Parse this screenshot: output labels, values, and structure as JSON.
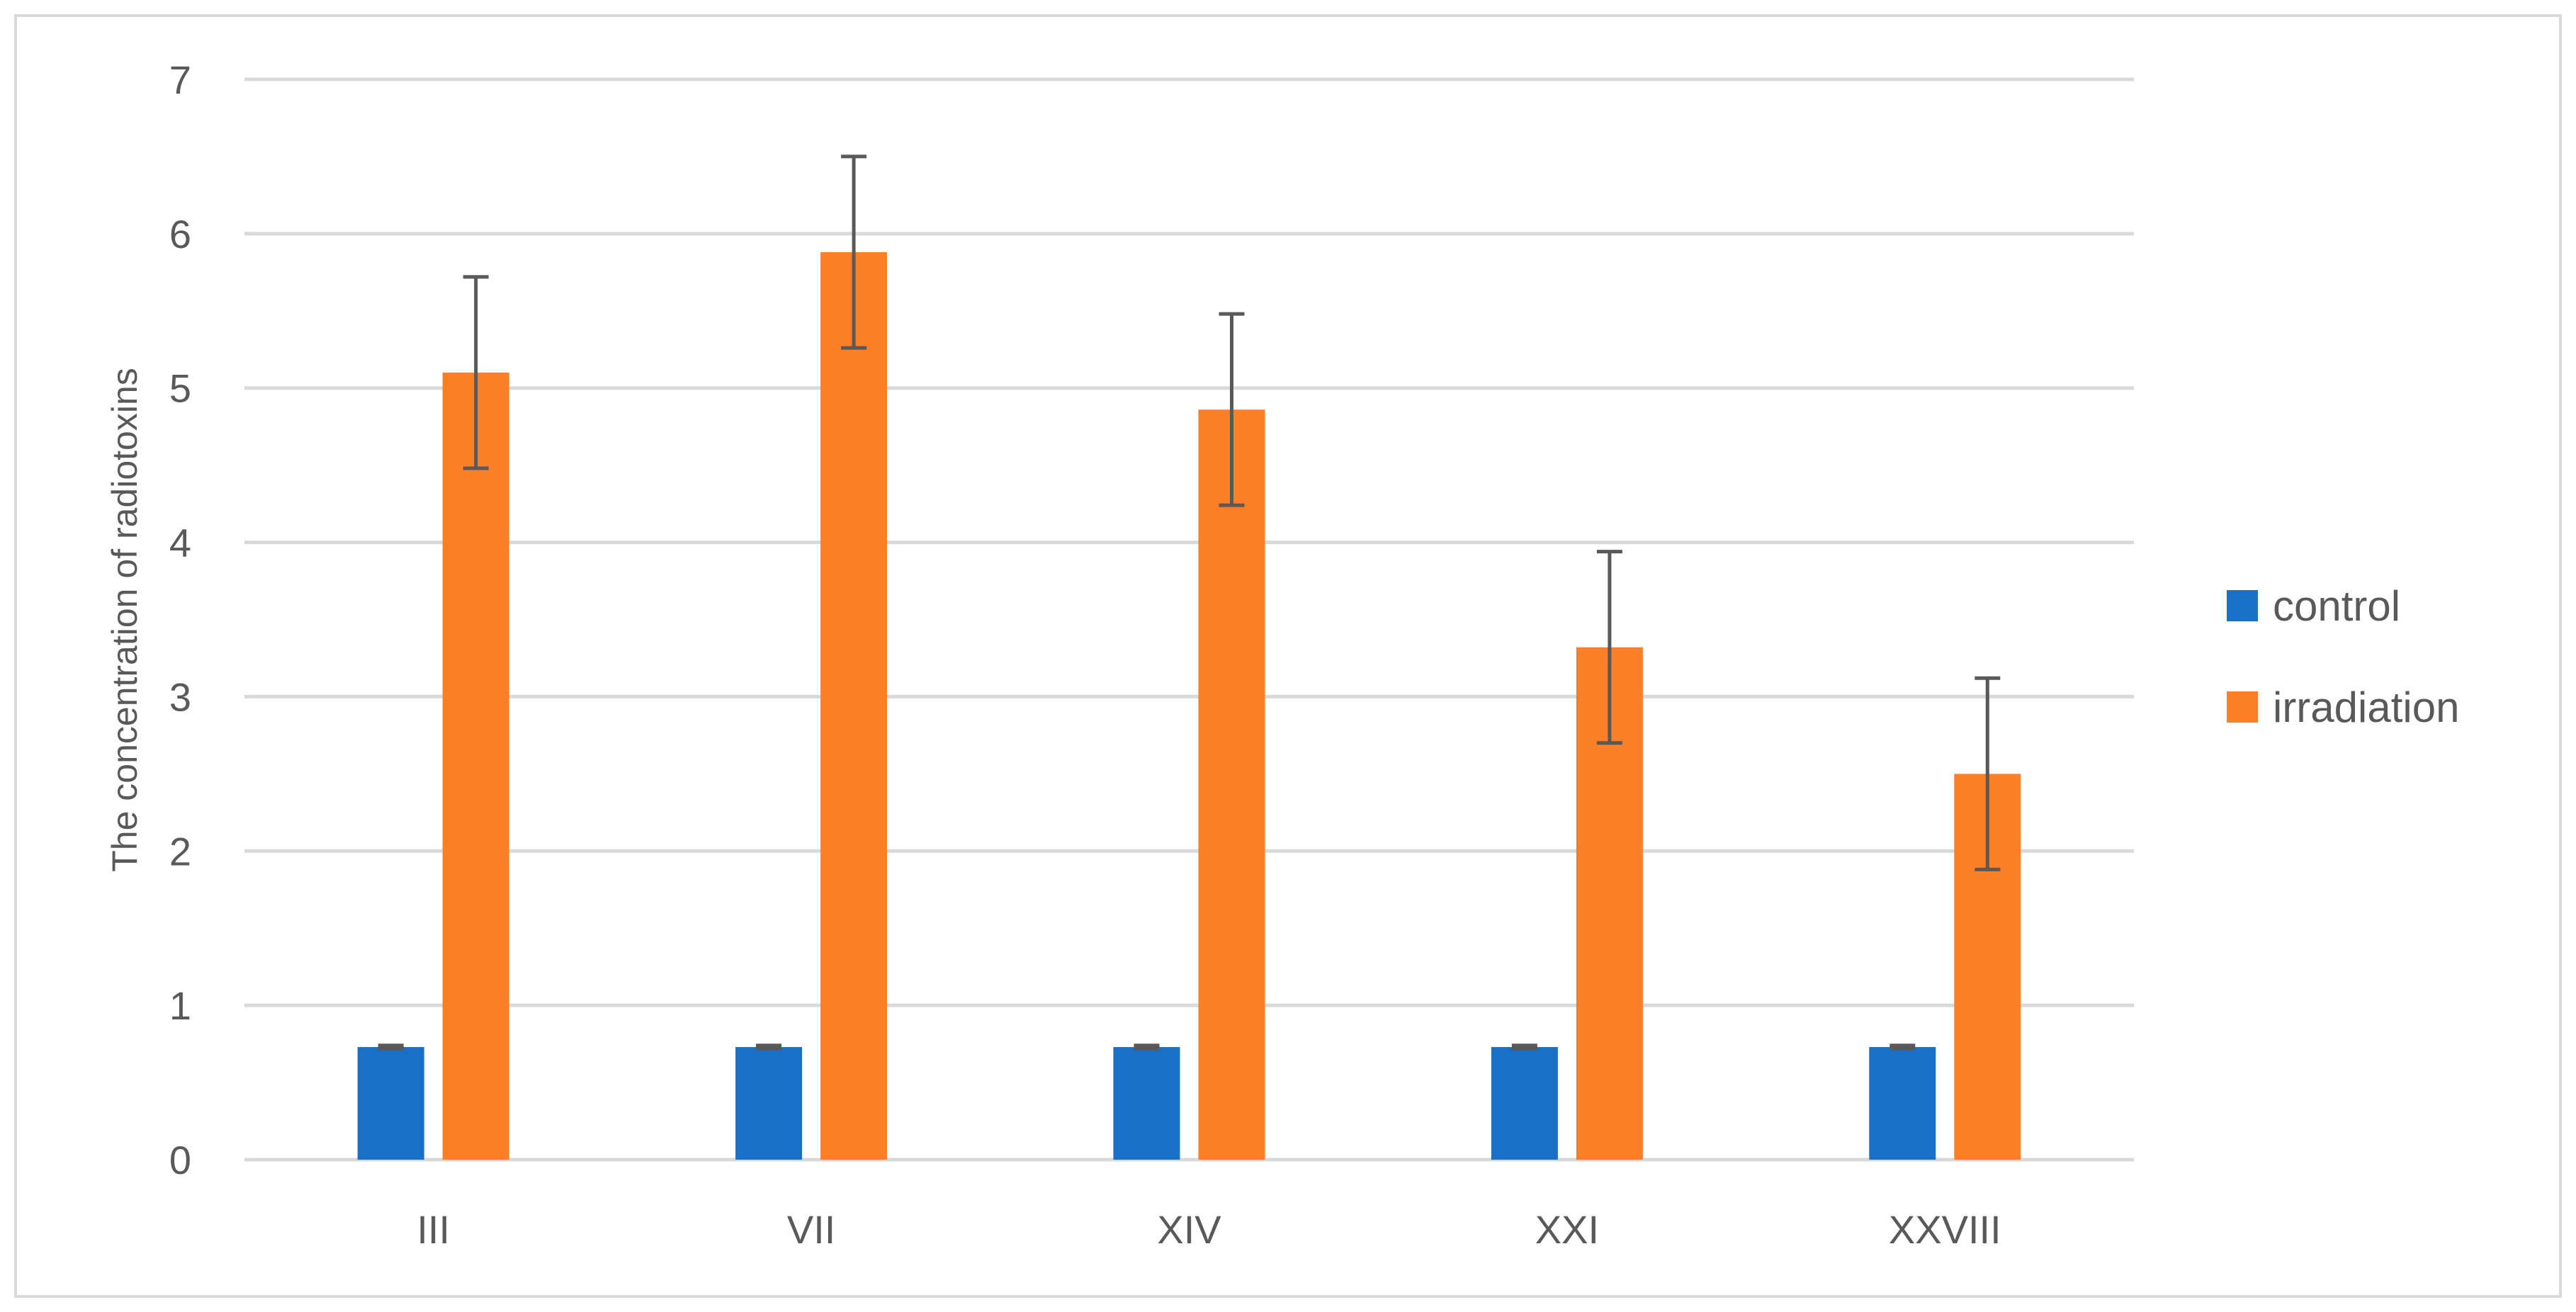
{
  "chart_data": {
    "type": "bar",
    "title": "",
    "xlabel": "",
    "ylabel": "The concentration of radiotoxins",
    "categories": [
      "III",
      "VII",
      "XIV",
      "XXI",
      "XXVIII"
    ],
    "series": [
      {
        "name": "control",
        "color": "#1a6fc7",
        "values": [
          0.73,
          0.73,
          0.73,
          0.73,
          0.73
        ],
        "errors": [
          0.01,
          0.01,
          0.01,
          0.01,
          0.01
        ]
      },
      {
        "name": "irradiation",
        "color": "#fd7f27",
        "values": [
          5.1,
          5.88,
          4.86,
          3.32,
          2.5
        ],
        "errors": [
          0.62,
          0.62,
          0.62,
          0.62,
          0.62
        ]
      }
    ],
    "ylim": [
      0,
      7
    ],
    "yticks": [
      "0",
      "1",
      "2",
      "3",
      "4",
      "5",
      "6",
      "7"
    ],
    "grid": true,
    "legend": "right",
    "error_bar_color": "#595959",
    "gridline_color": "#d9d9d9",
    "frame_color": "#d9d9d9"
  }
}
